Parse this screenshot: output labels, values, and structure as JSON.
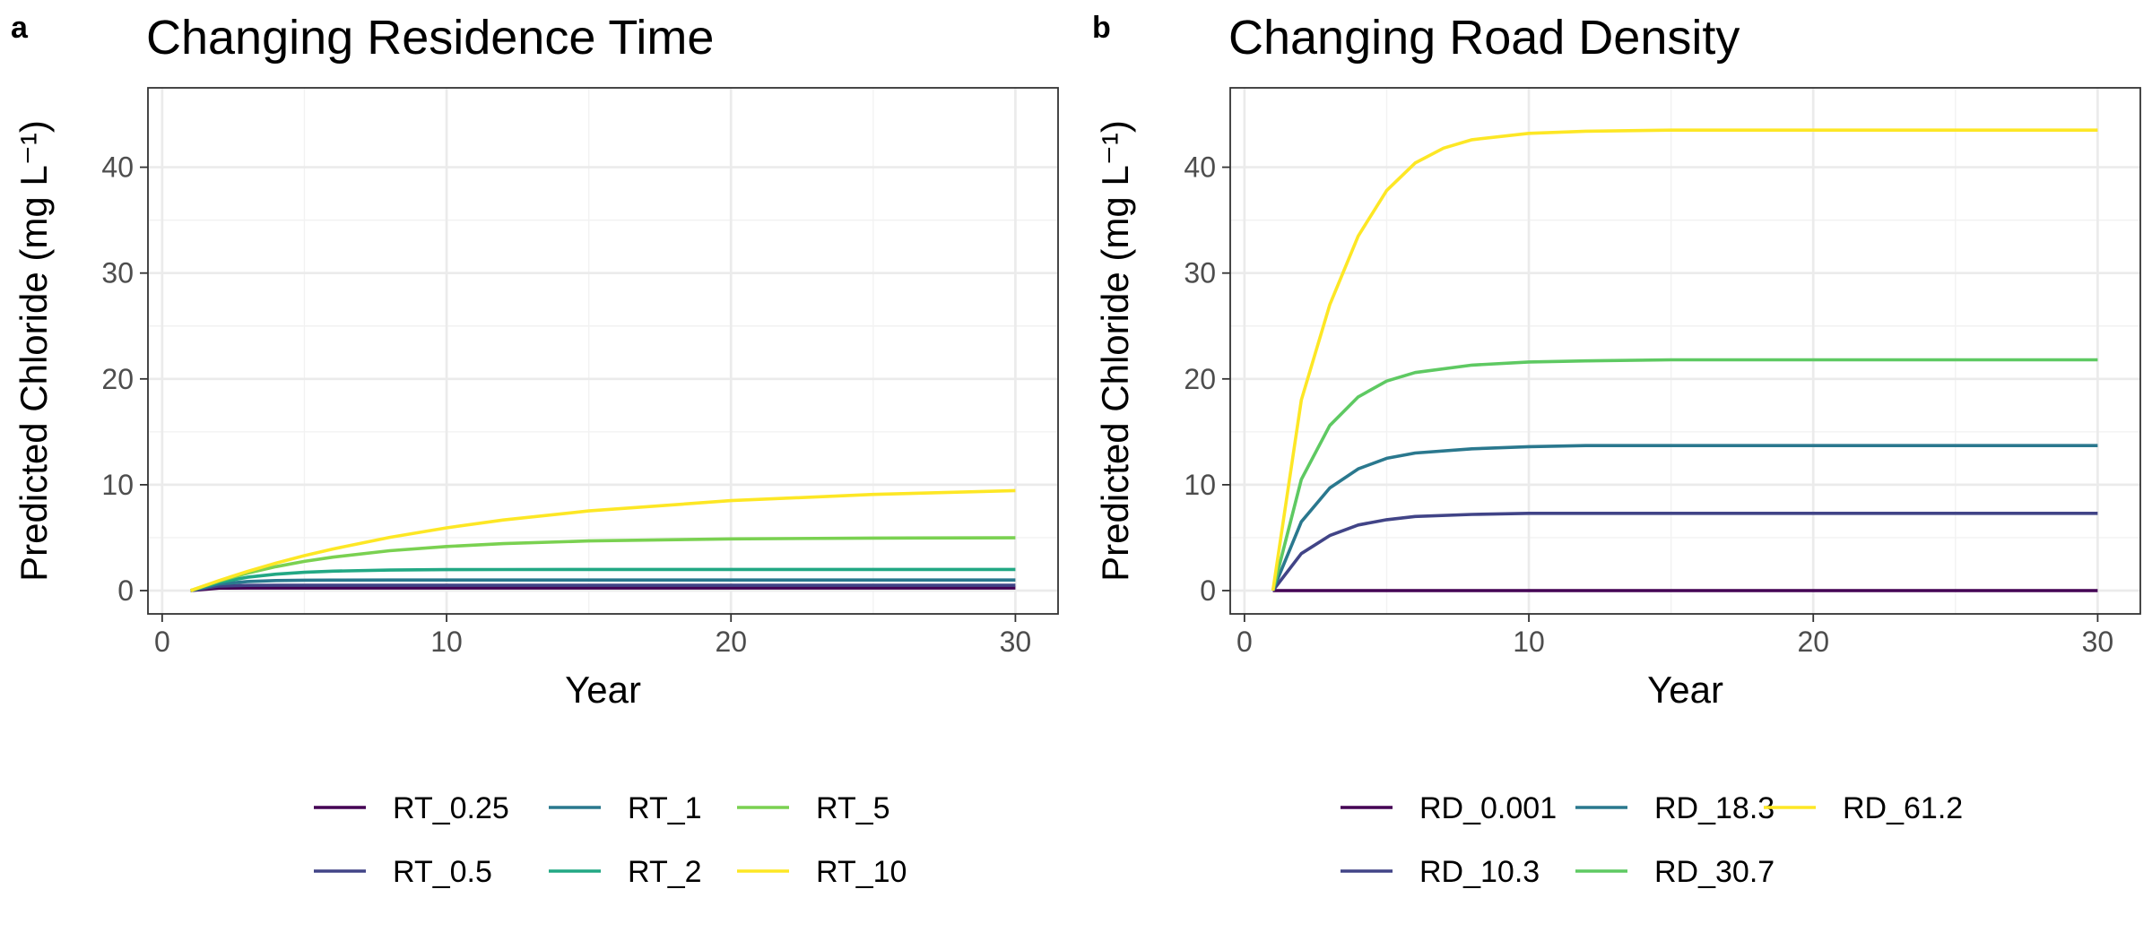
{
  "chart_data": [
    {
      "type": "line",
      "panel": "a",
      "title": "Changing Residence Time",
      "xlabel": "Year",
      "ylabel": "Predicted Chloride (mg L⁻¹)",
      "xlim": [
        -0.5,
        31.5
      ],
      "ylim": [
        -2.2,
        47.5
      ],
      "xticks": [
        0,
        10,
        20,
        30
      ],
      "yticks": [
        0,
        10,
        20,
        30,
        40
      ],
      "grid": true,
      "legend_position": "bottom",
      "legend_columns": 3,
      "series": [
        {
          "name": "RT_0.25",
          "color": "#440154",
          "x": [
            1,
            2,
            3,
            4,
            5,
            6,
            8,
            10,
            12,
            15,
            20,
            25,
            30
          ],
          "values": [
            0,
            0.24,
            0.25,
            0.25,
            0.25,
            0.25,
            0.25,
            0.25,
            0.25,
            0.25,
            0.25,
            0.25,
            0.25
          ]
        },
        {
          "name": "RT_0.5",
          "color": "#414487",
          "x": [
            1,
            2,
            3,
            4,
            5,
            6,
            8,
            10,
            12,
            15,
            20,
            25,
            30
          ],
          "values": [
            0,
            0.43,
            0.49,
            0.5,
            0.5,
            0.5,
            0.5,
            0.5,
            0.5,
            0.5,
            0.5,
            0.5,
            0.5
          ]
        },
        {
          "name": "RT_1",
          "color": "#2A788E",
          "x": [
            1,
            2,
            3,
            4,
            5,
            6,
            8,
            10,
            12,
            15,
            20,
            25,
            30
          ],
          "values": [
            0,
            0.63,
            0.86,
            0.95,
            0.98,
            0.99,
            1.0,
            1.0,
            1.0,
            1.0,
            1.0,
            1.0,
            1.0
          ]
        },
        {
          "name": "RT_2",
          "color": "#22A884",
          "x": [
            1,
            2,
            3,
            4,
            5,
            6,
            8,
            10,
            12,
            15,
            20,
            25,
            30
          ],
          "values": [
            0,
            0.79,
            1.26,
            1.55,
            1.73,
            1.84,
            1.94,
            1.98,
            1.99,
            2.0,
            2.0,
            2.0,
            2.0
          ]
        },
        {
          "name": "RT_5",
          "color": "#7AD151",
          "x": [
            1,
            2,
            3,
            4,
            5,
            6,
            8,
            10,
            12,
            15,
            20,
            25,
            30
          ],
          "values": [
            0,
            0.91,
            1.65,
            2.26,
            2.76,
            3.16,
            3.77,
            4.17,
            4.44,
            4.69,
            4.89,
            4.96,
            4.99
          ]
        },
        {
          "name": "RT_10",
          "color": "#FDE725",
          "x": [
            1,
            2,
            3,
            4,
            5,
            6,
            8,
            10,
            12,
            15,
            20,
            25,
            30
          ],
          "values": [
            0,
            0.95,
            1.81,
            2.59,
            3.3,
            3.93,
            5.03,
            5.93,
            6.67,
            7.53,
            8.5,
            9.09,
            9.45
          ]
        }
      ]
    },
    {
      "type": "line",
      "panel": "b",
      "title": "Changing Road Density",
      "xlabel": "Year",
      "ylabel": "Predicted Chloride (mg L⁻¹)",
      "xlim": [
        -0.5,
        31.5
      ],
      "ylim": [
        -2.2,
        47.5
      ],
      "xticks": [
        0,
        10,
        20,
        30
      ],
      "yticks": [
        0,
        10,
        20,
        30,
        40
      ],
      "grid": true,
      "legend_position": "bottom",
      "legend_columns": 3,
      "series": [
        {
          "name": "RD_0.001",
          "color": "#440154",
          "x": [
            1,
            2,
            3,
            4,
            5,
            6,
            8,
            10,
            12,
            15,
            20,
            25,
            30
          ],
          "values": [
            0,
            0,
            0,
            0,
            0,
            0,
            0,
            0,
            0,
            0,
            0,
            0,
            0
          ]
        },
        {
          "name": "RD_10.3",
          "color": "#414487",
          "x": [
            1,
            2,
            3,
            4,
            5,
            6,
            8,
            10,
            12,
            15,
            20,
            25,
            30
          ],
          "values": [
            0,
            3.5,
            5.2,
            6.2,
            6.7,
            7.0,
            7.2,
            7.3,
            7.3,
            7.3,
            7.3,
            7.3,
            7.3
          ]
        },
        {
          "name": "RD_18.3",
          "color": "#2A788E",
          "x": [
            1,
            2,
            3,
            4,
            5,
            6,
            8,
            10,
            12,
            15,
            20,
            25,
            30
          ],
          "values": [
            0,
            6.5,
            9.7,
            11.5,
            12.5,
            13.0,
            13.4,
            13.6,
            13.7,
            13.7,
            13.7,
            13.7,
            13.7
          ]
        },
        {
          "name": "RD_30.7",
          "color": "#5EC962",
          "x": [
            1,
            2,
            3,
            4,
            5,
            6,
            8,
            10,
            12,
            15,
            20,
            25,
            30
          ],
          "values": [
            0,
            10.5,
            15.6,
            18.3,
            19.8,
            20.6,
            21.3,
            21.6,
            21.7,
            21.8,
            21.8,
            21.8,
            21.8
          ]
        },
        {
          "name": "RD_61.2",
          "color": "#FDE725",
          "x": [
            1,
            2,
            3,
            4,
            5,
            6,
            7,
            8,
            10,
            12,
            15,
            20,
            25,
            30
          ],
          "values": [
            0,
            18.0,
            27.0,
            33.5,
            37.8,
            40.4,
            41.8,
            42.6,
            43.2,
            43.4,
            43.5,
            43.5,
            43.5,
            43.5
          ]
        }
      ]
    }
  ]
}
